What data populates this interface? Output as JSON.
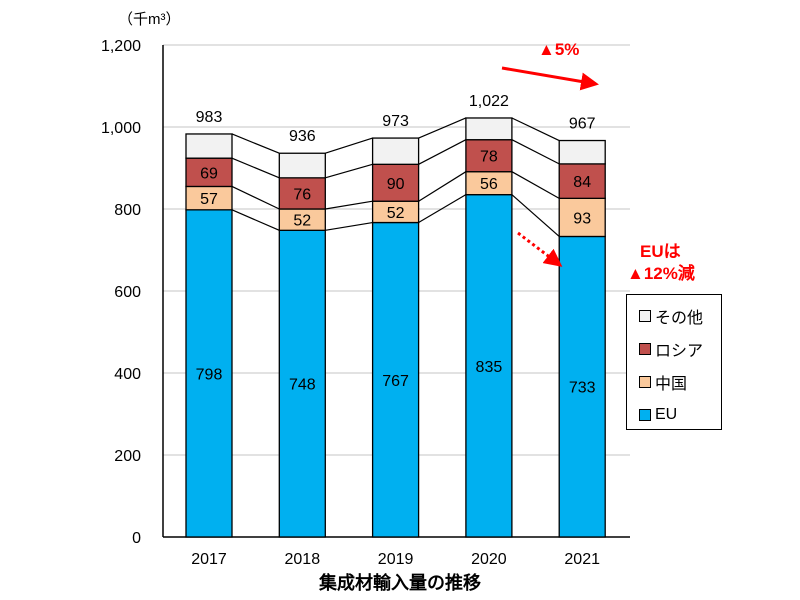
{
  "chart_data": {
    "type": "bar",
    "stacked": true,
    "title": "集成材輸入量の推移",
    "ylabel": "（千m³）",
    "ylim": [
      0,
      1200
    ],
    "yticks": [
      "0",
      "200",
      "400",
      "600",
      "800",
      "1,000",
      "1,200"
    ],
    "ytick_values": [
      0,
      200,
      400,
      600,
      800,
      1000,
      1200
    ],
    "categories": [
      "2017",
      "2018",
      "2019",
      "2020",
      "2021"
    ],
    "series": [
      {
        "name": "EU",
        "color": "#00b0f0",
        "values": [
          798,
          748,
          767,
          835,
          733
        ]
      },
      {
        "name": "中国",
        "color": "#fac99c",
        "values": [
          57,
          52,
          52,
          56,
          93
        ]
      },
      {
        "name": "ロシア",
        "color": "#c0504d",
        "values": [
          69,
          76,
          90,
          78,
          84
        ]
      },
      {
        "name": "その他",
        "color": "#f2f2f2",
        "values": [
          59,
          60,
          64,
          53,
          57
        ]
      }
    ],
    "totals": [
      "983",
      "936",
      "973",
      "1,022",
      "967"
    ],
    "total_values": [
      983,
      936,
      973,
      1022,
      967
    ],
    "legend_order": [
      "その他",
      "ロシア",
      "中国",
      "EU"
    ],
    "legend_position": "right",
    "annotations": {
      "total_change": "▲5%",
      "eu_change_line1": "EUは",
      "eu_change_line2": "▲12%減"
    },
    "grid": true
  }
}
